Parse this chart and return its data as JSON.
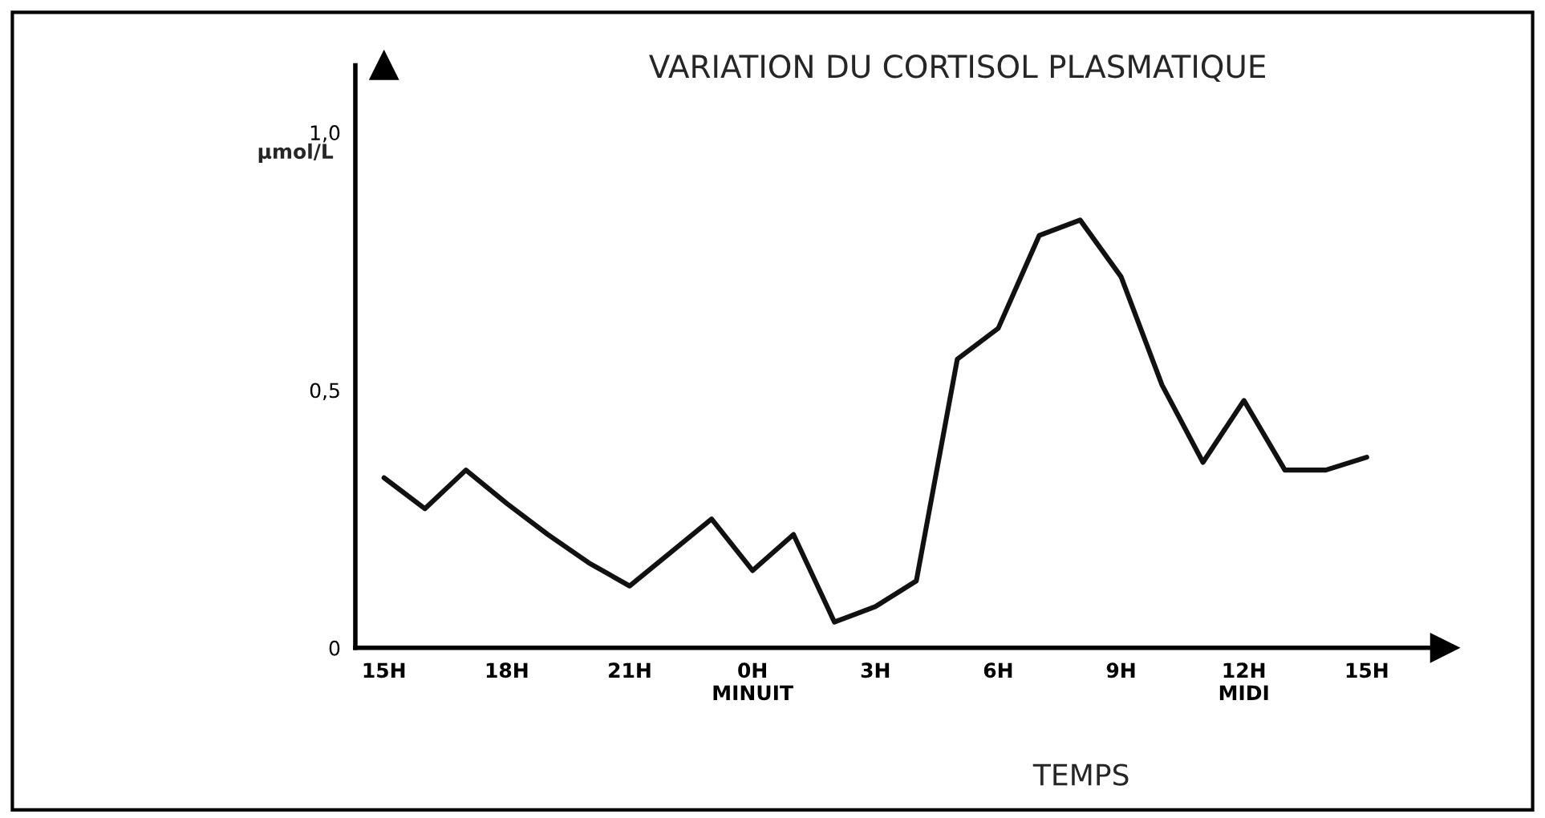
{
  "chart_data": {
    "type": "line",
    "title": "VARIATION DU CORTISOL PLASMATIQUE",
    "xlabel": "TEMPS",
    "ylabel": "µmol/L",
    "categories": [
      "15H",
      null,
      null,
      "18H",
      null,
      null,
      "21H",
      null,
      null,
      "0H\nMINUIT",
      null,
      null,
      "3H",
      null,
      null,
      "6H",
      null,
      null,
      "9H",
      null,
      null,
      "12H\nMIDI",
      null,
      null,
      "15H"
    ],
    "series": [
      {
        "color": "#111111",
        "values": [
          0.33,
          0.27,
          0.345,
          0.28,
          0.22,
          0.165,
          0.12,
          0.185,
          0.25,
          0.15,
          0.22,
          0.05,
          0.08,
          0.13,
          0.56,
          0.62,
          0.8,
          0.83,
          0.72,
          0.51,
          0.36,
          0.48,
          0.345,
          0.345,
          0.37
        ]
      }
    ],
    "ylim": [
      0,
      1.13
    ],
    "yticks": [
      0,
      {
        "value": 0.5,
        "label": "0,5"
      },
      {
        "value": 1,
        "label": "1,0"
      }
    ],
    "grid": false,
    "legend": false,
    "marker": "none",
    "line_style": "solid"
  }
}
